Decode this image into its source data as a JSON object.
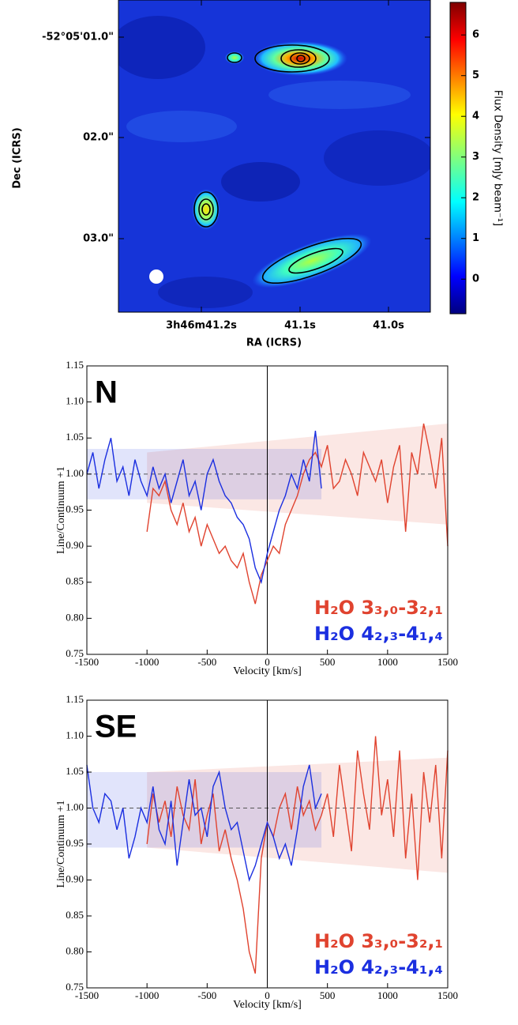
{
  "chart_data": [
    {
      "type": "image",
      "x_label": "RA (ICRS)",
      "y_label": "Dec (ICRS)",
      "x_labels": [
        "3h46m41.2s",
        "41.1s",
        "41.0s"
      ],
      "y_labels": [
        "-52°05'01.0\"",
        "02.0\"",
        "03.0\""
      ],
      "colorbar_label": "Flux Density [mJy beam⁻¹]",
      "clim": [
        -0.85,
        6.8
      ],
      "cticks": [
        0,
        1,
        2,
        3,
        4,
        5,
        6
      ]
    },
    {
      "type": "line",
      "label": "N",
      "x_label": "Velocity [km/s]",
      "y_label": "Line/Continuum +1",
      "xlim": [
        -1500,
        1500
      ],
      "ylim": [
        0.75,
        1.15
      ],
      "xticks": [
        -1500,
        -1000,
        -500,
        0,
        500,
        1000,
        1500
      ],
      "yticks": [
        0.75,
        {
          "value": 0.8,
          "label": "0.80"
        },
        0.85,
        {
          "value": 0.9,
          "label": "0.90"
        },
        0.95,
        {
          "value": 1.0,
          "label": "1.00"
        },
        1.05,
        {
          "value": 1.1,
          "label": "1.10"
        },
        1.15
      ],
      "hline": 1.0,
      "vline": 0,
      "series": [
        {
          "name": "H₂O 3₃,₀-3₂,₁",
          "color": "#e0432f",
          "band_x": [
            -1000,
            1500
          ],
          "band_lower": [
            0.96,
            0.93
          ],
          "band_upper": [
            1.03,
            1.07
          ],
          "x": [
            -1000,
            -950,
            -900,
            -850,
            -800,
            -750,
            -700,
            -650,
            -600,
            -550,
            -500,
            -450,
            -400,
            -350,
            -300,
            -250,
            -200,
            -150,
            -100,
            -50,
            0,
            50,
            100,
            150,
            200,
            250,
            300,
            350,
            400,
            450,
            500,
            550,
            600,
            650,
            700,
            750,
            800,
            850,
            900,
            950,
            1000,
            1050,
            1100,
            1150,
            1200,
            1250,
            1300,
            1350,
            1400,
            1450,
            1500
          ],
          "values": [
            0.92,
            0.98,
            0.97,
            0.99,
            0.95,
            0.93,
            0.96,
            0.92,
            0.94,
            0.9,
            0.93,
            0.91,
            0.89,
            0.9,
            0.88,
            0.87,
            0.89,
            0.85,
            0.82,
            0.86,
            0.88,
            0.9,
            0.89,
            0.93,
            0.95,
            0.97,
            1.0,
            1.02,
            1.03,
            1.01,
            1.04,
            0.98,
            0.99,
            1.02,
            1.0,
            0.97,
            1.03,
            1.01,
            0.99,
            1.02,
            0.96,
            1.01,
            1.04,
            0.92,
            1.03,
            1.0,
            1.07,
            1.03,
            0.98,
            1.05,
            0.9
          ]
        },
        {
          "name": "H₂O 4₂,₃-4₁,₄",
          "color": "#1b2fe0",
          "band_x": [
            -1500,
            450
          ],
          "band_lower": [
            0.965,
            0.965
          ],
          "band_upper": [
            1.035,
            1.035
          ],
          "x": [
            -1500,
            -1450,
            -1400,
            -1350,
            -1300,
            -1250,
            -1200,
            -1150,
            -1100,
            -1050,
            -1000,
            -950,
            -900,
            -850,
            -800,
            -750,
            -700,
            -650,
            -600,
            -550,
            -500,
            -450,
            -400,
            -350,
            -300,
            -250,
            -200,
            -150,
            -100,
            -50,
            0,
            50,
            100,
            150,
            200,
            250,
            300,
            350,
            400,
            450
          ],
          "values": [
            1.0,
            1.03,
            0.98,
            1.02,
            1.05,
            0.99,
            1.01,
            0.97,
            1.02,
            0.99,
            0.97,
            1.01,
            0.98,
            1.0,
            0.96,
            0.99,
            1.02,
            0.97,
            0.99,
            0.95,
            1.0,
            1.02,
            0.99,
            0.97,
            0.96,
            0.94,
            0.93,
            0.91,
            0.87,
            0.85,
            0.89,
            0.92,
            0.95,
            0.97,
            1.0,
            0.98,
            1.02,
            0.99,
            1.06,
            0.98
          ]
        }
      ]
    },
    {
      "type": "line",
      "label": "SE",
      "x_label": "Velocity [km/s]",
      "y_label": "Line/Continuum +1",
      "xlim": [
        -1500,
        1500
      ],
      "ylim": [
        0.75,
        1.15
      ],
      "xticks": [
        -1500,
        -1000,
        -500,
        0,
        500,
        1000,
        1500
      ],
      "yticks": [
        0.75,
        {
          "value": 0.8,
          "label": "0.80"
        },
        0.85,
        {
          "value": 0.9,
          "label": "0.90"
        },
        0.95,
        {
          "value": 1.0,
          "label": "1.00"
        },
        1.05,
        {
          "value": 1.1,
          "label": "1.10"
        },
        1.15
      ],
      "hline": 1.0,
      "vline": 0,
      "series": [
        {
          "name": "H₂O 3₃,₀-3₂,₁",
          "color": "#e0432f",
          "band_x": [
            -1000,
            1500
          ],
          "band_lower": [
            0.945,
            0.91
          ],
          "band_upper": [
            1.05,
            1.07
          ],
          "x": [
            -1000,
            -950,
            -900,
            -850,
            -800,
            -750,
            -700,
            -650,
            -600,
            -550,
            -500,
            -450,
            -400,
            -350,
            -300,
            -250,
            -200,
            -150,
            -100,
            -50,
            0,
            50,
            100,
            150,
            200,
            250,
            300,
            350,
            400,
            450,
            500,
            550,
            600,
            650,
            700,
            750,
            800,
            850,
            900,
            950,
            1000,
            1050,
            1100,
            1150,
            1200,
            1250,
            1300,
            1350,
            1400,
            1450,
            1500
          ],
          "values": [
            0.95,
            1.02,
            0.98,
            1.01,
            0.96,
            1.03,
            0.99,
            0.97,
            1.04,
            0.95,
            0.99,
            1.02,
            0.94,
            0.97,
            0.93,
            0.9,
            0.86,
            0.8,
            0.77,
            0.93,
            0.98,
            0.96,
            1.0,
            1.02,
            0.97,
            1.03,
            0.99,
            1.01,
            0.97,
            0.99,
            1.02,
            0.96,
            1.06,
            1.0,
            0.94,
            1.08,
            1.02,
            0.97,
            1.1,
            0.99,
            1.04,
            0.96,
            1.08,
            0.93,
            1.02,
            0.9,
            1.05,
            0.98,
            1.06,
            0.93,
            1.08
          ]
        },
        {
          "name": "H₂O 4₂,₃-4₁,₄",
          "color": "#1b2fe0",
          "band_x": [
            -1500,
            450
          ],
          "band_lower": [
            0.945,
            0.945
          ],
          "band_upper": [
            1.05,
            1.05
          ],
          "x": [
            -1500,
            -1450,
            -1400,
            -1350,
            -1300,
            -1250,
            -1200,
            -1150,
            -1100,
            -1050,
            -1000,
            -950,
            -900,
            -850,
            -800,
            -750,
            -700,
            -650,
            -600,
            -550,
            -500,
            -450,
            -400,
            -350,
            -300,
            -250,
            -200,
            -150,
            -100,
            -50,
            0,
            50,
            100,
            150,
            200,
            250,
            300,
            350,
            400,
            450
          ],
          "values": [
            1.06,
            1.0,
            0.98,
            1.02,
            1.01,
            0.97,
            1.0,
            0.93,
            0.96,
            1.0,
            0.98,
            1.03,
            0.97,
            0.95,
            1.01,
            0.92,
            0.98,
            1.04,
            0.99,
            1.0,
            0.96,
            1.03,
            1.05,
            1.0,
            0.97,
            0.98,
            0.94,
            0.9,
            0.92,
            0.95,
            0.98,
            0.96,
            0.93,
            0.95,
            0.92,
            0.97,
            1.03,
            1.06,
            1.0,
            1.02
          ]
        }
      ]
    }
  ]
}
